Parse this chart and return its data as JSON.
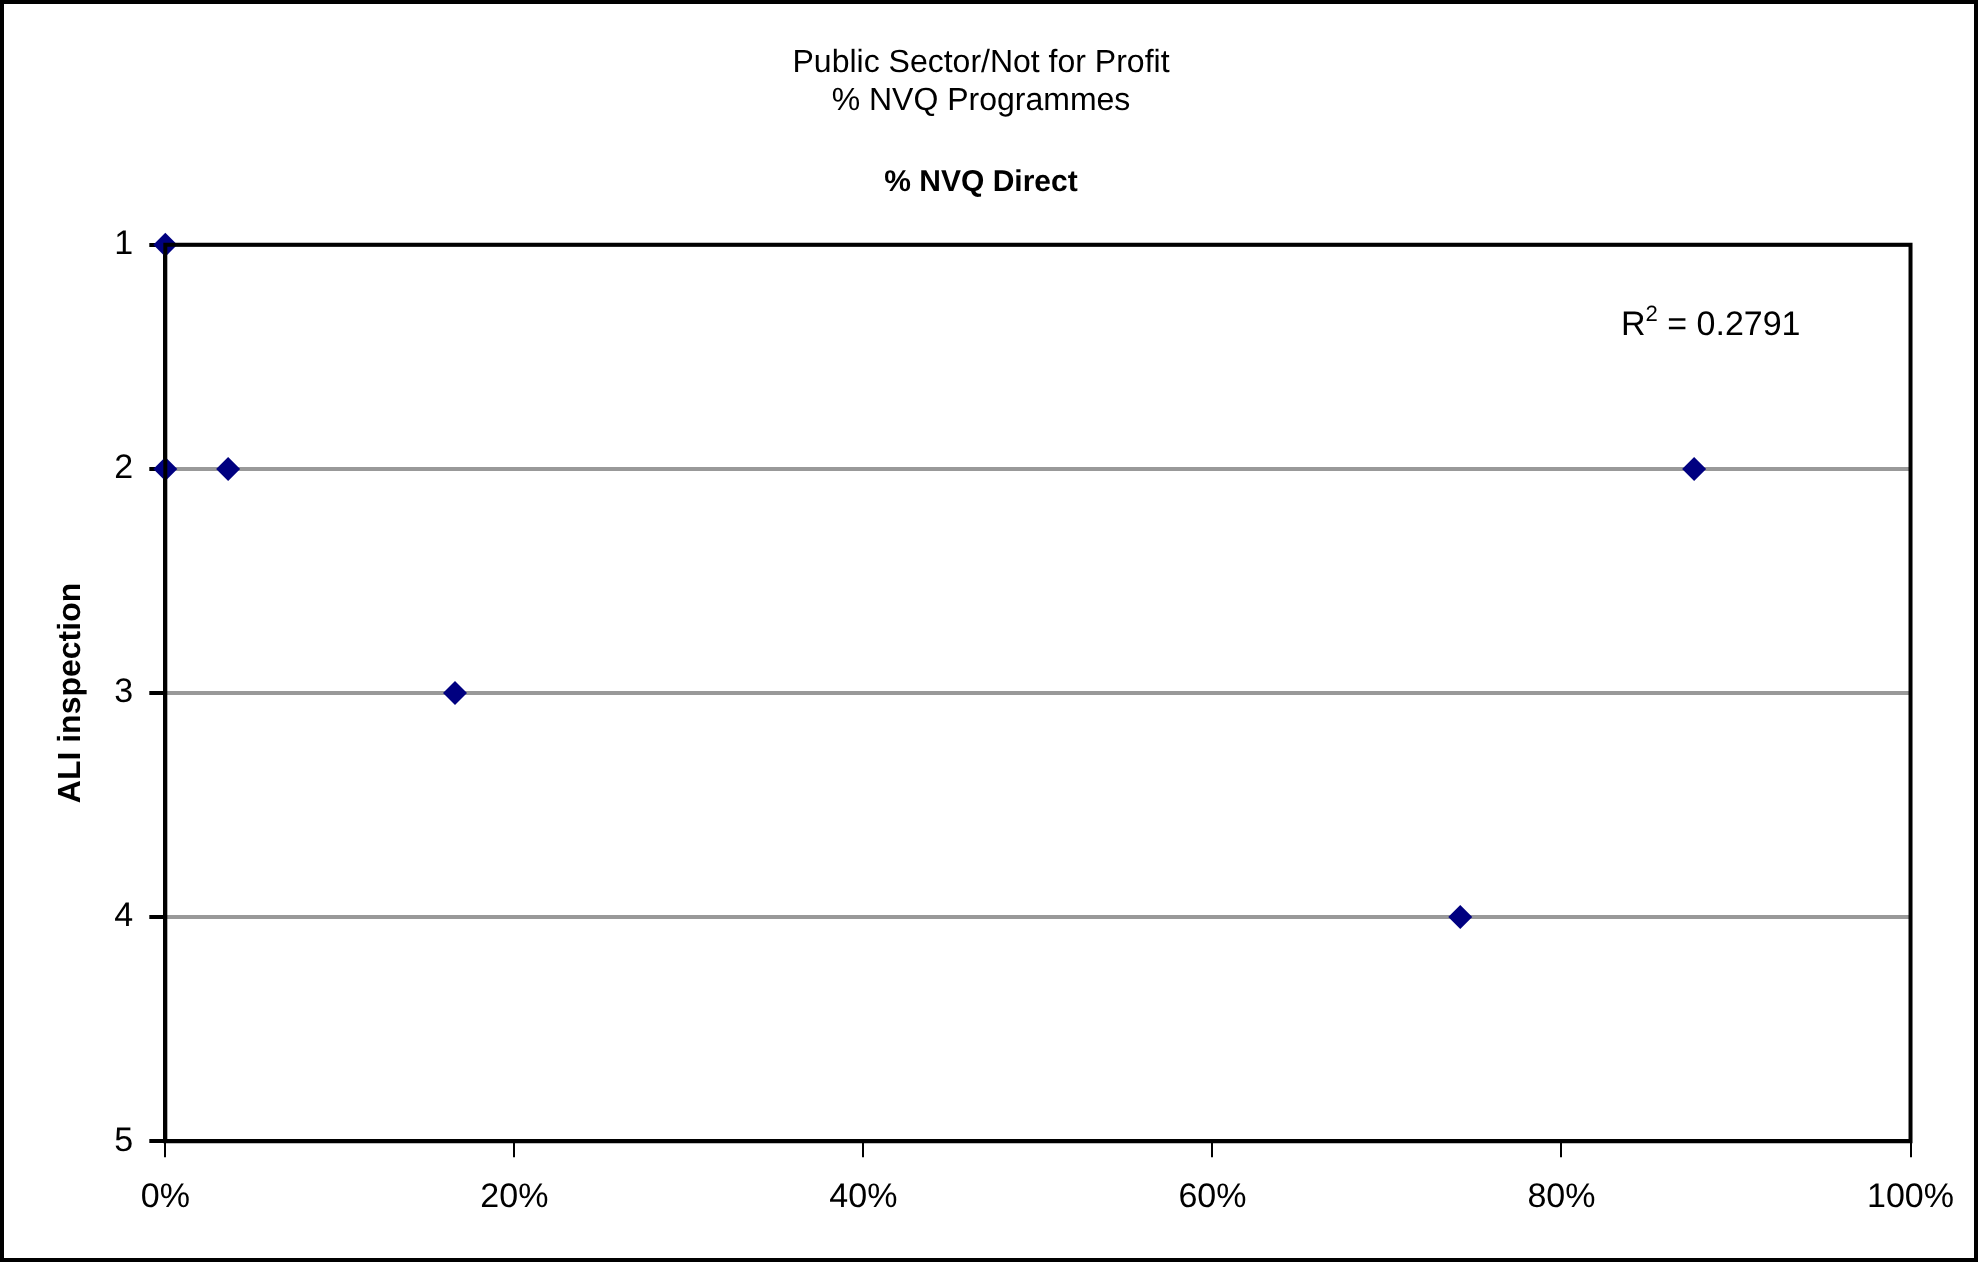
{
  "chart_data": {
    "type": "scatter",
    "title": [
      "Public Sector/Not for Profit",
      "% NVQ Programmes"
    ],
    "subtitle": "% NVQ Direct",
    "ylabel": "ALI inspection",
    "x": [
      0,
      0,
      3.6,
      16.6,
      74.2,
      87.6
    ],
    "series": [
      {
        "color": "#000080",
        "values": [
          1,
          2,
          2,
          3,
          4,
          2
        ]
      }
    ],
    "xlim": [
      0,
      100
    ],
    "xticks": [
      {
        "value": 0,
        "label": "0%"
      },
      {
        "value": 20,
        "label": "20%"
      },
      {
        "value": 40,
        "label": "40%"
      },
      {
        "value": 60,
        "label": "60%"
      },
      {
        "value": 80,
        "label": "80%"
      },
      {
        "value": 100,
        "label": "100%"
      }
    ],
    "ylim": [
      5,
      1
    ],
    "yticks": [
      1,
      2,
      3,
      4,
      5
    ],
    "grid": "y",
    "legend": false,
    "marker": "diamond",
    "annotations": [
      "R$^{2}$ = 0.2791"
    ]
  }
}
